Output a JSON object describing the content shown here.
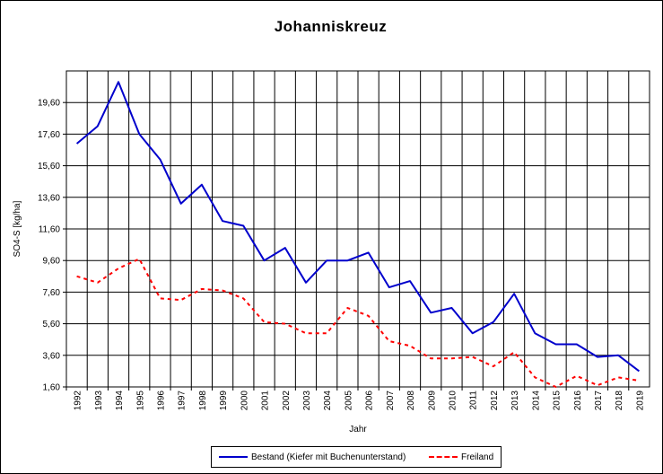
{
  "chart_data": {
    "type": "line",
    "title": "Johanniskreuz",
    "xlabel": "Jahr",
    "ylabel": "SO4-S [kg/ha]",
    "ylim": [
      1.6,
      21.6
    ],
    "yticks": [
      "1,60",
      "3,60",
      "5,60",
      "7,60",
      "9,60",
      "11,60",
      "13,60",
      "15,60",
      "17,60",
      "19,60"
    ],
    "grid": true,
    "legend": "bottom",
    "categories": [
      "1992",
      "1993",
      "1994",
      "1995",
      "1996",
      "1997",
      "1998",
      "1999",
      "2000",
      "2001",
      "2002",
      "2003",
      "2004",
      "2005",
      "2006",
      "2007",
      "2008",
      "2009",
      "2010",
      "2011",
      "2012",
      "2013",
      "2014",
      "2015",
      "2016",
      "2017",
      "2018",
      "2019"
    ],
    "series": [
      {
        "name": "Bestand (Kiefer mit Buchenunterstand)",
        "color": "#0000cc",
        "style": "solid",
        "values": [
          17.0,
          18.1,
          20.9,
          17.6,
          16.0,
          13.2,
          14.4,
          12.1,
          11.8,
          9.6,
          10.4,
          8.2,
          9.6,
          9.6,
          10.1,
          7.9,
          8.3,
          6.3,
          6.6,
          5.0,
          5.7,
          7.5,
          5.0,
          4.3,
          4.3,
          3.5,
          3.6,
          2.6
        ]
      },
      {
        "name": "Freiland",
        "color": "#ff0000",
        "style": "dashed",
        "values": [
          8.6,
          8.2,
          9.1,
          9.7,
          7.2,
          7.1,
          7.8,
          7.7,
          7.2,
          5.7,
          5.6,
          5.0,
          5.0,
          6.6,
          6.1,
          4.5,
          4.2,
          3.4,
          3.4,
          3.5,
          2.9,
          3.8,
          2.2,
          1.6,
          2.3,
          1.7,
          2.2,
          2.0
        ]
      }
    ]
  }
}
